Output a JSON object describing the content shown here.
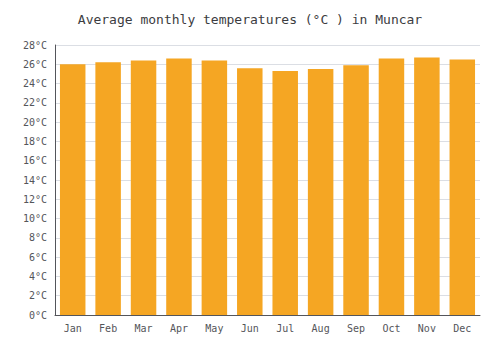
{
  "chart_data": {
    "type": "bar",
    "title": "Average monthly temperatures (°C ) in Muncar",
    "categories": [
      "Jan",
      "Feb",
      "Mar",
      "Apr",
      "May",
      "Jun",
      "Jul",
      "Aug",
      "Sep",
      "Oct",
      "Nov",
      "Dec"
    ],
    "values": [
      26.0,
      26.2,
      26.4,
      26.6,
      26.4,
      25.6,
      25.3,
      25.5,
      25.9,
      26.6,
      26.7,
      26.5
    ],
    "color": "#F5A623",
    "ylim": [
      0,
      28
    ],
    "yticks": [
      {
        "value": 0,
        "label": "0°C"
      },
      {
        "value": 2,
        "label": "2°C"
      },
      {
        "value": 4,
        "label": "4°C"
      },
      {
        "value": 6,
        "label": "6°C"
      },
      {
        "value": 8,
        "label": "8°C"
      },
      {
        "value": 10,
        "label": "10°C"
      },
      {
        "value": 12,
        "label": "12°C"
      },
      {
        "value": 14,
        "label": "14°C"
      },
      {
        "value": 16,
        "label": "16°C"
      },
      {
        "value": 18,
        "label": "18°C"
      },
      {
        "value": 20,
        "label": "20°C"
      },
      {
        "value": 22,
        "label": "22°C"
      },
      {
        "value": 24,
        "label": "24°C"
      },
      {
        "value": 26,
        "label": "26°C"
      },
      {
        "value": 28,
        "label": "28°C"
      }
    ],
    "grid": true
  }
}
